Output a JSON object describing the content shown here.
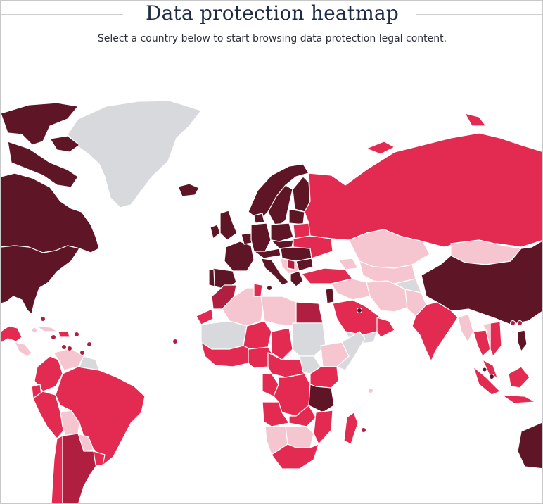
{
  "header": {
    "title": "Data protection heatmap",
    "subtitle": "Select a country below to start browsing data protection legal content."
  },
  "legend_colors": {
    "heavy": "#5e1526",
    "robust": "#b01e40",
    "moderate": "#e32a50",
    "limited": "#f6c6d0",
    "none": "#d8d9dc"
  }
}
